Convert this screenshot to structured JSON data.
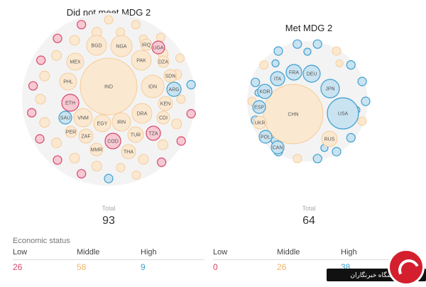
{
  "chart_data": [
    {
      "type": "bubble-pack",
      "title": "Did not meet MDG 2",
      "total_label": "Total",
      "total": 93,
      "labeled": [
        {
          "label": "IND",
          "status": "middle"
        },
        {
          "label": "NGA",
          "status": "middle"
        },
        {
          "label": "BGD",
          "status": "middle"
        },
        {
          "label": "PAK",
          "status": "middle"
        },
        {
          "label": "IDN",
          "status": "middle"
        },
        {
          "label": "MEX",
          "status": "middle"
        },
        {
          "label": "PHL",
          "status": "middle"
        },
        {
          "label": "ETH",
          "status": "low"
        },
        {
          "label": "VNM",
          "status": "middle"
        },
        {
          "label": "EGY",
          "status": "middle"
        },
        {
          "label": "IRN",
          "status": "middle"
        },
        {
          "label": "DRA",
          "status": "middle"
        },
        {
          "label": "COD",
          "status": "low"
        },
        {
          "label": "TUR",
          "status": "middle"
        },
        {
          "label": "THA",
          "status": "middle"
        },
        {
          "label": "TZA",
          "status": "low"
        },
        {
          "label": "KEN",
          "status": "middle"
        },
        {
          "label": "UGA",
          "status": "low"
        },
        {
          "label": "ARG",
          "status": "high"
        },
        {
          "label": "SAU",
          "status": "high"
        },
        {
          "label": "ZAF",
          "status": "middle"
        },
        {
          "label": "PER",
          "status": "middle"
        },
        {
          "label": "MMR",
          "status": "middle"
        },
        {
          "label": "SDN",
          "status": "middle"
        },
        {
          "label": "DZA",
          "status": "middle"
        },
        {
          "label": "CDI",
          "status": "middle"
        },
        {
          "label": "IRQ",
          "status": "middle"
        }
      ]
    },
    {
      "type": "bubble-pack",
      "title": "Met MDG 2",
      "total_label": "Total",
      "total": 64,
      "labeled": [
        {
          "label": "CHN",
          "status": "middle"
        },
        {
          "label": "USA",
          "status": "high"
        },
        {
          "label": "JPN",
          "status": "high"
        },
        {
          "label": "DEU",
          "status": "high"
        },
        {
          "label": "FRA",
          "status": "high"
        },
        {
          "label": "ITA",
          "status": "high"
        },
        {
          "label": "KOR",
          "status": "high"
        },
        {
          "label": "ESP",
          "status": "high"
        },
        {
          "label": "UKR",
          "status": "middle"
        },
        {
          "label": "POL",
          "status": "high"
        },
        {
          "label": "CAN",
          "status": "high"
        },
        {
          "label": "RUS",
          "status": "middle"
        }
      ]
    }
  ],
  "legend": {
    "heading": "Economic status",
    "categories": [
      "Low",
      "Middle",
      "High"
    ],
    "left_counts": [
      26,
      58,
      9
    ],
    "right_counts": [
      0,
      26,
      38
    ]
  },
  "colors": {
    "low": "#d6476b",
    "middle": "#f5c48a",
    "high": "#3e9fcf",
    "low_fill": "#f7c9d3",
    "middle_fill": "#fbe8d0",
    "high_fill": "#c9e3f1"
  },
  "badge": {
    "text": "باشگاه خبرنگاران"
  }
}
